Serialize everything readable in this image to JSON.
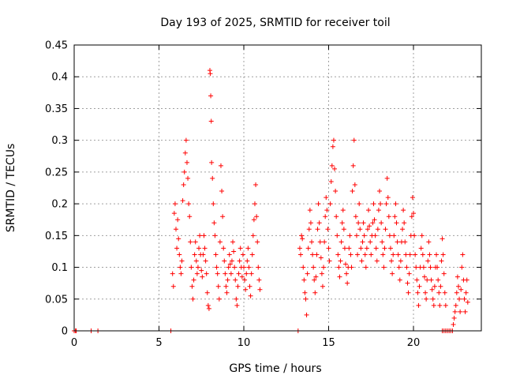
{
  "chart_data": {
    "type": "scatter",
    "title": "Day 193 of 2025, SRMTID for receiver toil",
    "xlabel": "GPS time / hours",
    "ylabel": "SRMTID / TECUs",
    "xlim": [
      0,
      24
    ],
    "ylim": [
      0,
      0.45
    ],
    "xticks": [
      0,
      5,
      10,
      15,
      20
    ],
    "yticks": [
      0,
      0.05,
      0.1,
      0.15,
      0.2,
      0.25,
      0.3,
      0.35,
      0.4,
      0.45
    ],
    "xtick_labels": [
      "0",
      "5",
      "10",
      "15",
      "20"
    ],
    "ytick_labels": [
      "0",
      "0.05",
      "0.1",
      "0.15",
      "0.2",
      "0.25",
      "0.3",
      "0.35",
      "0.4",
      "0.45"
    ],
    "grid": true,
    "marker": "plus",
    "color": "#ff0000",
    "points": [
      [
        0.0,
        0
      ],
      [
        0.08,
        0
      ],
      [
        0.12,
        0
      ],
      [
        1.0,
        0
      ],
      [
        1.4,
        0
      ],
      [
        5.7,
        0
      ],
      [
        5.8,
        0.09
      ],
      [
        5.85,
        0.07
      ],
      [
        5.9,
        0.185
      ],
      [
        5.95,
        0.2
      ],
      [
        6.0,
        0.16
      ],
      [
        6.05,
        0.13
      ],
      [
        6.1,
        0.175
      ],
      [
        6.15,
        0.145
      ],
      [
        6.2,
        0.12
      ],
      [
        6.25,
        0.1
      ],
      [
        6.3,
        0.09
      ],
      [
        6.35,
        0.11
      ],
      [
        6.4,
        0.205
      ],
      [
        6.45,
        0.23
      ],
      [
        6.5,
        0.25
      ],
      [
        6.55,
        0.28
      ],
      [
        6.6,
        0.3
      ],
      [
        6.65,
        0.265
      ],
      [
        6.7,
        0.24
      ],
      [
        6.75,
        0.2
      ],
      [
        6.8,
        0.18
      ],
      [
        6.85,
        0.14
      ],
      [
        6.9,
        0.1
      ],
      [
        6.95,
        0.07
      ],
      [
        7.0,
        0.05
      ],
      [
        7.05,
        0.08
      ],
      [
        7.1,
        0.12
      ],
      [
        7.15,
        0.14
      ],
      [
        7.2,
        0.11
      ],
      [
        7.25,
        0.09
      ],
      [
        7.3,
        0.1
      ],
      [
        7.35,
        0.13
      ],
      [
        7.4,
        0.15
      ],
      [
        7.45,
        0.12
      ],
      [
        7.5,
        0.095
      ],
      [
        7.55,
        0.085
      ],
      [
        7.6,
        0.12
      ],
      [
        7.65,
        0.15
      ],
      [
        7.7,
        0.13
      ],
      [
        7.75,
        0.11
      ],
      [
        7.8,
        0.09
      ],
      [
        7.85,
        0.06
      ],
      [
        7.9,
        0.04
      ],
      [
        7.95,
        0.035
      ],
      [
        8.0,
        0.41
      ],
      [
        8.02,
        0.405
      ],
      [
        8.05,
        0.37
      ],
      [
        8.08,
        0.33
      ],
      [
        8.1,
        0.265
      ],
      [
        8.15,
        0.24
      ],
      [
        8.2,
        0.2
      ],
      [
        8.25,
        0.17
      ],
      [
        8.3,
        0.15
      ],
      [
        8.35,
        0.12
      ],
      [
        8.4,
        0.1
      ],
      [
        8.45,
        0.09
      ],
      [
        8.5,
        0.07
      ],
      [
        8.55,
        0.05
      ],
      [
        8.6,
        0.14
      ],
      [
        8.65,
        0.26
      ],
      [
        8.7,
        0.22
      ],
      [
        8.75,
        0.18
      ],
      [
        8.8,
        0.13
      ],
      [
        8.85,
        0.11
      ],
      [
        8.9,
        0.09
      ],
      [
        8.95,
        0.07
      ],
      [
        9.0,
        0.06
      ],
      [
        9.05,
        0.08
      ],
      [
        9.1,
        0.1
      ],
      [
        9.15,
        0.12
      ],
      [
        9.2,
        0.105
      ],
      [
        9.25,
        0.09
      ],
      [
        9.3,
        0.11
      ],
      [
        9.35,
        0.14
      ],
      [
        9.4,
        0.125
      ],
      [
        9.45,
        0.1
      ],
      [
        9.5,
        0.08
      ],
      [
        9.55,
        0.05
      ],
      [
        9.6,
        0.04
      ],
      [
        9.65,
        0.07
      ],
      [
        9.7,
        0.09
      ],
      [
        9.75,
        0.11
      ],
      [
        9.8,
        0.13
      ],
      [
        9.85,
        0.1
      ],
      [
        9.9,
        0.085
      ],
      [
        9.95,
        0.12
      ],
      [
        10.0,
        0.1
      ],
      [
        10.05,
        0.08
      ],
      [
        10.1,
        0.065
      ],
      [
        10.15,
        0.09
      ],
      [
        10.2,
        0.11
      ],
      [
        10.25,
        0.13
      ],
      [
        10.3,
        0.1
      ],
      [
        10.35,
        0.07
      ],
      [
        10.4,
        0.055
      ],
      [
        10.45,
        0.09
      ],
      [
        10.5,
        0.12
      ],
      [
        10.55,
        0.15
      ],
      [
        10.6,
        0.175
      ],
      [
        10.65,
        0.2
      ],
      [
        10.7,
        0.23
      ],
      [
        10.75,
        0.18
      ],
      [
        10.8,
        0.14
      ],
      [
        10.85,
        0.1
      ],
      [
        10.9,
        0.08
      ],
      [
        10.95,
        0.065
      ],
      [
        13.2,
        0
      ],
      [
        13.3,
        0.13
      ],
      [
        13.35,
        0.12
      ],
      [
        13.4,
        0.15
      ],
      [
        13.45,
        0.145
      ],
      [
        13.5,
        0.1
      ],
      [
        13.55,
        0.08
      ],
      [
        13.6,
        0.06
      ],
      [
        13.65,
        0.05
      ],
      [
        13.7,
        0.025
      ],
      [
        13.75,
        0.09
      ],
      [
        13.8,
        0.13
      ],
      [
        13.85,
        0.16
      ],
      [
        13.9,
        0.19
      ],
      [
        13.95,
        0.17
      ],
      [
        14.0,
        0.14
      ],
      [
        14.05,
        0.12
      ],
      [
        14.1,
        0.1
      ],
      [
        14.15,
        0.08
      ],
      [
        14.2,
        0.06
      ],
      [
        14.25,
        0.085
      ],
      [
        14.3,
        0.12
      ],
      [
        14.35,
        0.16
      ],
      [
        14.4,
        0.2
      ],
      [
        14.45,
        0.17
      ],
      [
        14.5,
        0.14
      ],
      [
        14.55,
        0.115
      ],
      [
        14.6,
        0.09
      ],
      [
        14.65,
        0.07
      ],
      [
        14.7,
        0.1
      ],
      [
        14.75,
        0.14
      ],
      [
        14.8,
        0.18
      ],
      [
        14.85,
        0.21
      ],
      [
        14.9,
        0.19
      ],
      [
        14.95,
        0.16
      ],
      [
        15.0,
        0.13
      ],
      [
        15.05,
        0.11
      ],
      [
        15.1,
        0.2
      ],
      [
        15.15,
        0.235
      ],
      [
        15.2,
        0.26
      ],
      [
        15.25,
        0.29
      ],
      [
        15.3,
        0.3
      ],
      [
        15.35,
        0.255
      ],
      [
        15.4,
        0.22
      ],
      [
        15.45,
        0.18
      ],
      [
        15.5,
        0.15
      ],
      [
        15.55,
        0.12
      ],
      [
        15.6,
        0.1
      ],
      [
        15.65,
        0.085
      ],
      [
        15.7,
        0.11
      ],
      [
        15.75,
        0.14
      ],
      [
        15.8,
        0.17
      ],
      [
        15.85,
        0.19
      ],
      [
        15.9,
        0.16
      ],
      [
        15.95,
        0.13
      ],
      [
        16.0,
        0.105
      ],
      [
        16.05,
        0.09
      ],
      [
        16.1,
        0.075
      ],
      [
        16.15,
        0.1
      ],
      [
        16.2,
        0.13
      ],
      [
        16.25,
        0.15
      ],
      [
        16.3,
        0.12
      ],
      [
        16.35,
        0.1
      ],
      [
        16.4,
        0.22
      ],
      [
        16.45,
        0.26
      ],
      [
        16.5,
        0.3
      ],
      [
        16.55,
        0.23
      ],
      [
        16.6,
        0.18
      ],
      [
        16.65,
        0.15
      ],
      [
        16.7,
        0.12
      ],
      [
        16.75,
        0.17
      ],
      [
        16.8,
        0.2
      ],
      [
        16.85,
        0.16
      ],
      [
        16.9,
        0.13
      ],
      [
        16.95,
        0.11
      ],
      [
        17.0,
        0.14
      ],
      [
        17.05,
        0.17
      ],
      [
        17.1,
        0.15
      ],
      [
        17.15,
        0.12
      ],
      [
        17.2,
        0.1
      ],
      [
        17.25,
        0.13
      ],
      [
        17.3,
        0.16
      ],
      [
        17.35,
        0.19
      ],
      [
        17.4,
        0.165
      ],
      [
        17.45,
        0.14
      ],
      [
        17.5,
        0.12
      ],
      [
        17.55,
        0.15
      ],
      [
        17.6,
        0.17
      ],
      [
        17.65,
        0.2
      ],
      [
        17.7,
        0.175
      ],
      [
        17.75,
        0.15
      ],
      [
        17.8,
        0.13
      ],
      [
        17.85,
        0.11
      ],
      [
        17.9,
        0.16
      ],
      [
        17.95,
        0.19
      ],
      [
        18.0,
        0.22
      ],
      [
        18.05,
        0.2
      ],
      [
        18.1,
        0.17
      ],
      [
        18.15,
        0.14
      ],
      [
        18.2,
        0.12
      ],
      [
        18.25,
        0.1
      ],
      [
        18.3,
        0.13
      ],
      [
        18.35,
        0.16
      ],
      [
        18.4,
        0.2
      ],
      [
        18.45,
        0.24
      ],
      [
        18.5,
        0.21
      ],
      [
        18.55,
        0.18
      ],
      [
        18.6,
        0.15
      ],
      [
        18.65,
        0.13
      ],
      [
        18.7,
        0.11
      ],
      [
        18.75,
        0.09
      ],
      [
        18.8,
        0.12
      ],
      [
        18.85,
        0.15
      ],
      [
        18.9,
        0.18
      ],
      [
        18.95,
        0.2
      ],
      [
        19.0,
        0.17
      ],
      [
        19.05,
        0.14
      ],
      [
        19.1,
        0.12
      ],
      [
        19.15,
        0.1
      ],
      [
        19.2,
        0.08
      ],
      [
        19.25,
        0.11
      ],
      [
        19.3,
        0.14
      ],
      [
        19.35,
        0.16
      ],
      [
        19.4,
        0.19
      ],
      [
        19.45,
        0.17
      ],
      [
        19.5,
        0.14
      ],
      [
        19.55,
        0.12
      ],
      [
        19.6,
        0.1
      ],
      [
        19.65,
        0.075
      ],
      [
        19.7,
        0.06
      ],
      [
        19.75,
        0.09
      ],
      [
        19.8,
        0.12
      ],
      [
        19.85,
        0.15
      ],
      [
        19.9,
        0.18
      ],
      [
        19.95,
        0.21
      ],
      [
        20.0,
        0.185
      ],
      [
        20.05,
        0.15
      ],
      [
        20.1,
        0.12
      ],
      [
        20.15,
        0.1
      ],
      [
        20.2,
        0.08
      ],
      [
        20.25,
        0.06
      ],
      [
        20.3,
        0.04
      ],
      [
        20.35,
        0.07
      ],
      [
        20.4,
        0.1
      ],
      [
        20.45,
        0.13
      ],
      [
        20.5,
        0.15
      ],
      [
        20.55,
        0.12
      ],
      [
        20.6,
        0.1
      ],
      [
        20.65,
        0.085
      ],
      [
        20.7,
        0.06
      ],
      [
        20.75,
        0.05
      ],
      [
        20.8,
        0.08
      ],
      [
        20.85,
        0.11
      ],
      [
        20.9,
        0.14
      ],
      [
        20.95,
        0.12
      ],
      [
        21.0,
        0.1
      ],
      [
        21.05,
        0.08
      ],
      [
        21.1,
        0.065
      ],
      [
        21.15,
        0.05
      ],
      [
        21.2,
        0.04
      ],
      [
        21.25,
        0.07
      ],
      [
        21.3,
        0.1
      ],
      [
        21.35,
        0.12
      ],
      [
        21.4,
        0.1
      ],
      [
        21.45,
        0.08
      ],
      [
        21.5,
        0.06
      ],
      [
        21.55,
        0.04
      ],
      [
        21.6,
        0.07
      ],
      [
        21.65,
        0.11
      ],
      [
        21.7,
        0.145
      ],
      [
        21.75,
        0.12
      ],
      [
        21.8,
        0.09
      ],
      [
        21.85,
        0.06
      ],
      [
        21.9,
        0.04
      ],
      [
        21.7,
        0
      ],
      [
        21.8,
        0
      ],
      [
        21.9,
        0
      ],
      [
        22.0,
        0
      ],
      [
        22.1,
        0
      ],
      [
        22.2,
        0
      ],
      [
        22.3,
        0
      ],
      [
        22.35,
        0.01
      ],
      [
        22.4,
        0.02
      ],
      [
        22.45,
        0.03
      ],
      [
        22.5,
        0.04
      ],
      [
        22.55,
        0.06
      ],
      [
        22.6,
        0.085
      ],
      [
        22.65,
        0.07
      ],
      [
        22.7,
        0.05
      ],
      [
        22.75,
        0.03
      ],
      [
        22.8,
        0.065
      ],
      [
        22.85,
        0.1
      ],
      [
        22.9,
        0.12
      ],
      [
        22.95,
        0.08
      ],
      [
        23.0,
        0.05
      ],
      [
        23.05,
        0.03
      ],
      [
        23.1,
        0.06
      ],
      [
        23.15,
        0.08
      ],
      [
        23.2,
        0.045
      ]
    ]
  }
}
